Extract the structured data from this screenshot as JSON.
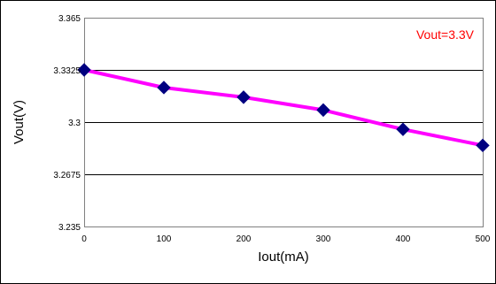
{
  "chart_data": {
    "type": "line",
    "title": "",
    "xlabel": "Iout(mA)",
    "ylabel": "Vout(V)",
    "x": [
      0,
      100,
      200,
      300,
      400,
      500
    ],
    "xlim": [
      0,
      500
    ],
    "ylim": [
      3.235,
      3.365
    ],
    "x_ticks": [
      "0",
      "100",
      "200",
      "300",
      "400",
      "500"
    ],
    "y_ticks": [
      "3.235",
      "3.2675",
      "3.3",
      "3.3325",
      "3.365"
    ],
    "y_tick_values": [
      3.235,
      3.2675,
      3.3,
      3.3325,
      3.365
    ],
    "series": [
      {
        "name": "",
        "values": [
          3.3325,
          3.3215,
          3.3155,
          3.3075,
          3.2955,
          3.2855
        ],
        "line_color": "#FF00FF",
        "marker_color": "#000080",
        "marker": "diamond"
      }
    ],
    "annotation": {
      "text": "Vout=3.3V",
      "color": "#FF0000",
      "position": "top-right"
    },
    "grid": "horizontal",
    "legend": "none"
  }
}
